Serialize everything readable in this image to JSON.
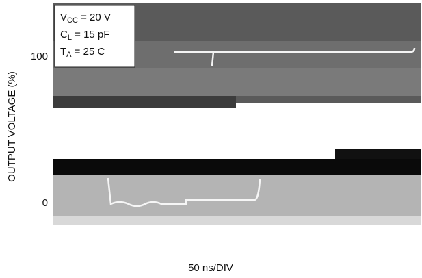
{
  "chart_data": {
    "type": "oscilloscope",
    "y_label": "OUTPUT VOLTAGE (%)",
    "x_label": "50 ns/DIV",
    "ylim": [
      -15,
      135
    ],
    "yticks": [
      0,
      100
    ],
    "annotations": [
      {
        "symbol": "V",
        "subscript": "CC",
        "text": " = 20 V"
      },
      {
        "symbol": "C",
        "subscript": "L",
        "text": " = 15 pF"
      },
      {
        "symbol": "T",
        "subscript": "A",
        "text": " = 25  C"
      }
    ]
  }
}
